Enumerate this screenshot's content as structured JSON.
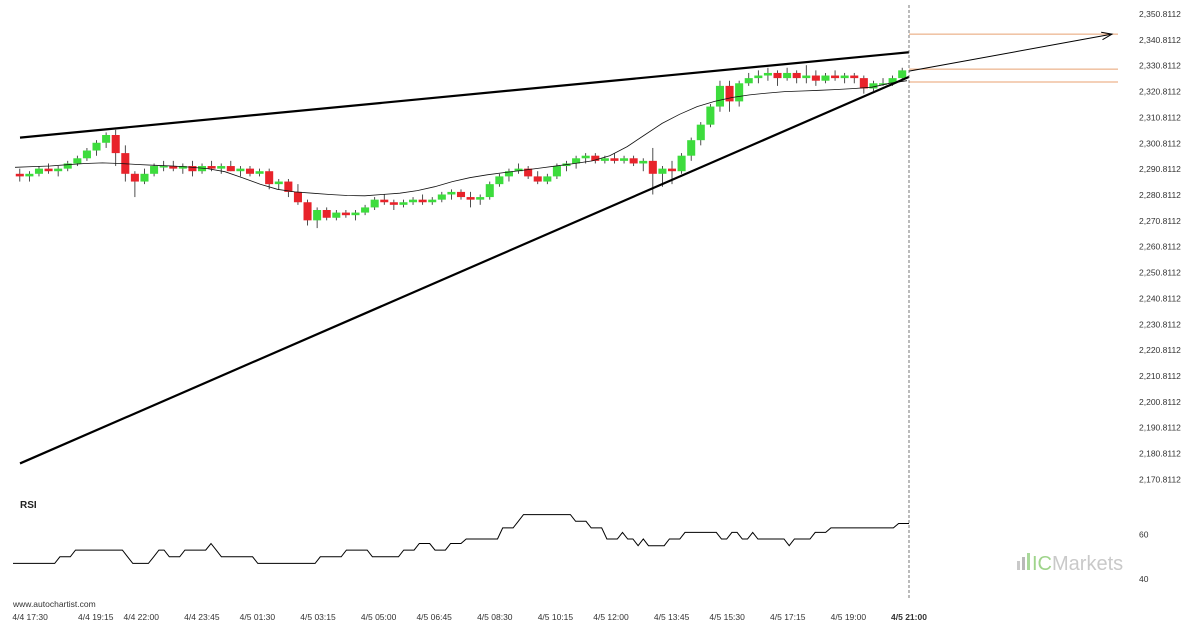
{
  "chart_data": {
    "type": "candlestick",
    "y_axis_ticks": [
      "2,350.8112",
      "2,340.8112",
      "2,330.8112",
      "2,320.8112",
      "2,310.8112",
      "2,300.8112",
      "2,290.8112",
      "2,280.8112",
      "2,270.8112",
      "2,260.8112",
      "2,250.8112",
      "2,240.8112",
      "2,230.8112",
      "2,220.8112",
      "2,210.8112",
      "2,200.8112",
      "2,190.8112",
      "2,180.8112",
      "2,170.8112"
    ],
    "y_tick_values": [
      2350.8112,
      2340.8112,
      2330.8112,
      2320.8112,
      2310.8112,
      2300.8112,
      2290.8112,
      2280.8112,
      2270.8112,
      2260.8112,
      2250.8112,
      2240.8112,
      2230.8112,
      2220.8112,
      2210.8112,
      2200.8112,
      2190.8112,
      2180.8112,
      2170.8112
    ],
    "ylim": [
      2167.5,
      2353.5
    ],
    "x_tick_labels": [
      "4/4 17:30",
      "4/4 19:15",
      "4/4 22:00",
      "4/4 23:45",
      "4/5 01:30",
      "4/5 03:15",
      "4/5 05:00",
      "4/5 06:45",
      "4/5 08:30",
      "4/5 10:15",
      "4/5 12:00",
      "4/5 13:45",
      "4/5 15:30",
      "4/5 17:15",
      "4/5 19:00",
      "4/5 21:00"
    ],
    "x_tick_index": [
      2,
      15,
      24,
      36,
      47,
      59,
      71,
      82,
      94,
      106,
      117,
      129,
      140,
      152,
      164,
      176
    ],
    "candles_ohlc": [
      [
        2289,
        2291,
        2286,
        2288
      ],
      [
        2288,
        2290,
        2286,
        2289
      ],
      [
        2289,
        2292,
        2288,
        2291
      ],
      [
        2291,
        2293,
        2289,
        2290
      ],
      [
        2290,
        2292,
        2288,
        2291
      ],
      [
        2291,
        2294,
        2290,
        2293
      ],
      [
        2293,
        2296,
        2292,
        2295
      ],
      [
        2295,
        2299,
        2294,
        2298
      ],
      [
        2298,
        2302,
        2296,
        2301
      ],
      [
        2301,
        2305,
        2299,
        2304
      ],
      [
        2304,
        2306,
        2292,
        2297
      ],
      [
        2297,
        2300,
        2286,
        2289
      ],
      [
        2289,
        2290,
        2280,
        2286
      ],
      [
        2286,
        2291,
        2285,
        2289
      ],
      [
        2289,
        2293,
        2288,
        2292
      ],
      [
        2292,
        2294,
        2290,
        2292
      ],
      [
        2292,
        2294,
        2290,
        2291
      ],
      [
        2291,
        2293,
        2289,
        2292
      ],
      [
        2292,
        2294,
        2288,
        2290
      ],
      [
        2290,
        2293,
        2289,
        2292
      ],
      [
        2292,
        2294,
        2290,
        2291
      ],
      [
        2291,
        2293,
        2289,
        2292
      ],
      [
        2292,
        2294,
        2290,
        2290
      ],
      [
        2290,
        2292,
        2288,
        2291
      ],
      [
        2291,
        2292,
        2288,
        2289
      ],
      [
        2289,
        2291,
        2288,
        2290
      ],
      [
        2290,
        2291,
        2283,
        2285
      ],
      [
        2285,
        2287,
        2283,
        2286
      ],
      [
        2286,
        2287,
        2280,
        2282
      ],
      [
        2282,
        2285,
        2277,
        2278
      ],
      [
        2278,
        2279,
        2269,
        2271
      ],
      [
        2271,
        2276,
        2268,
        2275
      ],
      [
        2275,
        2276,
        2271,
        2272
      ],
      [
        2272,
        2275,
        2271,
        2274
      ],
      [
        2274,
        2275,
        2272,
        2273
      ],
      [
        2273,
        2275,
        2271,
        2274
      ],
      [
        2274,
        2277,
        2273,
        2276
      ],
      [
        2276,
        2280,
        2275,
        2279
      ],
      [
        2279,
        2281,
        2277,
        2278
      ],
      [
        2278,
        2279,
        2275,
        2277
      ],
      [
        2277,
        2279,
        2276,
        2278
      ],
      [
        2278,
        2280,
        2277,
        2279
      ],
      [
        2279,
        2281,
        2277,
        2278
      ],
      [
        2278,
        2280,
        2277,
        2279
      ],
      [
        2279,
        2282,
        2278,
        2281
      ],
      [
        2281,
        2283,
        2279,
        2282
      ],
      [
        2282,
        2283,
        2279,
        2280
      ],
      [
        2280,
        2282,
        2276,
        2279
      ],
      [
        2279,
        2281,
        2277,
        2280
      ],
      [
        2280,
        2286,
        2279,
        2285
      ],
      [
        2285,
        2289,
        2284,
        2288
      ],
      [
        2288,
        2291,
        2286,
        2290
      ],
      [
        2290,
        2293,
        2289,
        2291
      ],
      [
        2291,
        2292,
        2287,
        2288
      ],
      [
        2288,
        2290,
        2285,
        2286
      ],
      [
        2286,
        2289,
        2285,
        2288
      ],
      [
        2288,
        2293,
        2287,
        2292
      ],
      [
        2292,
        2294,
        2290,
        2293
      ],
      [
        2293,
        2296,
        2291,
        2295
      ],
      [
        2295,
        2297,
        2293,
        2296
      ],
      [
        2296,
        2297,
        2293,
        2294
      ],
      [
        2294,
        2296,
        2293,
        2295
      ],
      [
        2295,
        2297,
        2293,
        2294
      ],
      [
        2294,
        2296,
        2293,
        2295
      ],
      [
        2295,
        2296,
        2292,
        2293
      ],
      [
        2293,
        2295,
        2290,
        2294
      ],
      [
        2294,
        2299,
        2281,
        2289
      ],
      [
        2289,
        2292,
        2284,
        2291
      ],
      [
        2291,
        2294,
        2285,
        2290
      ],
      [
        2290,
        2297,
        2289,
        2296
      ],
      [
        2296,
        2303,
        2294,
        2302
      ],
      [
        2302,
        2309,
        2300,
        2308
      ],
      [
        2308,
        2316,
        2307,
        2315
      ],
      [
        2315,
        2325,
        2313,
        2323
      ],
      [
        2323,
        2325,
        2313,
        2317
      ],
      [
        2317,
        2325,
        2315,
        2324
      ],
      [
        2324,
        2328,
        2323,
        2326
      ],
      [
        2326,
        2329,
        2324,
        2327
      ],
      [
        2327,
        2330,
        2325,
        2328
      ],
      [
        2328,
        2329,
        2323,
        2326
      ],
      [
        2326,
        2330,
        2325,
        2328
      ],
      [
        2328,
        2329,
        2324,
        2326
      ],
      [
        2326,
        2331,
        2324,
        2327
      ],
      [
        2327,
        2329,
        2323,
        2325
      ],
      [
        2325,
        2328,
        2324,
        2327
      ],
      [
        2327,
        2329,
        2325,
        2326
      ],
      [
        2326,
        2328,
        2324,
        2327
      ],
      [
        2327,
        2328,
        2324,
        2326
      ],
      [
        2326,
        2327,
        2320,
        2322
      ],
      [
        2322,
        2325,
        2321,
        2324
      ],
      [
        2324,
        2326,
        2323,
        2324
      ],
      [
        2324,
        2327,
        2323,
        2326
      ],
      [
        2326,
        2330,
        2325,
        2329
      ]
    ],
    "moving_average": [
      2291.5,
      2291.8,
      2292,
      2292.5,
      2293,
      2293.2,
      2293,
      2292.6,
      2292.3,
      2292,
      2291.6,
      2291,
      2289.8,
      2287.5,
      2285,
      2283,
      2282,
      2281.5,
      2281,
      2280.6,
      2280.5,
      2281,
      2281.5,
      2282.5,
      2284,
      2286,
      2287.5,
      2288.6,
      2289.5,
      2290.3,
      2291.2,
      2292.1,
      2293,
      2294,
      2296,
      2299.5,
      2304,
      2308.5,
      2312,
      2315,
      2317,
      2318.5,
      2319.5,
      2320.2,
      2320.8,
      2321,
      2321.3,
      2321.6,
      2322,
      2322.5,
      2324,
      2325
    ],
    "trendlines": [
      {
        "from": [
          0,
          2303.0
        ],
        "to": [
          176,
          2336.0
        ],
        "stroke": "#000000"
      },
      {
        "from": [
          0,
          2177.0
        ],
        "to": [
          176,
          2326.5
        ],
        "stroke": "#000000"
      }
    ],
    "projection_arrow": {
      "from": [
        176,
        2328.7
      ],
      "to": [
        205,
        2343.0
      ],
      "stroke": "#000000"
    },
    "target_levels": [
      2343.0,
      2329.5,
      2324.5
    ],
    "target_color": "#e8a070",
    "current_time_index": 176,
    "up_color": "#3ddc3d",
    "down_color": "#e8232b",
    "rsi": {
      "label": "RSI",
      "ticks": [
        "60",
        "40"
      ],
      "tick_values": [
        60,
        40
      ],
      "ylim": [
        35,
        72
      ],
      "values": [
        47,
        47,
        47,
        47,
        47,
        47,
        47,
        47,
        47,
        50,
        50,
        50,
        53,
        53,
        53,
        53,
        53,
        53,
        53,
        53,
        53,
        53,
        50,
        47,
        47,
        47,
        47,
        50,
        53,
        53,
        50,
        50,
        50,
        53,
        53,
        53,
        53,
        53,
        56,
        53,
        50,
        50,
        50,
        50,
        50,
        50,
        50,
        47,
        47,
        47,
        47,
        47,
        47,
        47,
        47,
        47,
        47,
        47,
        47,
        50,
        50,
        50,
        50,
        50,
        53,
        53,
        53,
        53,
        53,
        50,
        50,
        50,
        50,
        50,
        50,
        53,
        53,
        53,
        56,
        56,
        56,
        53,
        53,
        53,
        56,
        56,
        56,
        58,
        58,
        58,
        58,
        58,
        58,
        58,
        63,
        63,
        63,
        66,
        69,
        69,
        69,
        69,
        69,
        69,
        69,
        69,
        69,
        69,
        66,
        66,
        66,
        63,
        63,
        63,
        58,
        58,
        58,
        61,
        58,
        58,
        55,
        58,
        55,
        55,
        55,
        55,
        58,
        58,
        58,
        61,
        61,
        61,
        61,
        61,
        61,
        61,
        58,
        58,
        61,
        61,
        58,
        58,
        61,
        58,
        58,
        58,
        58,
        58,
        58,
        55,
        58,
        58,
        58,
        58,
        61,
        61,
        61,
        63,
        63,
        63,
        63,
        63,
        63,
        63,
        63,
        63,
        63,
        63,
        63,
        63,
        65,
        65,
        65
      ]
    },
    "source": "www.autochartist.com",
    "logo": {
      "brand_prefix": "IC",
      "brand_suffix": "Markets"
    }
  }
}
